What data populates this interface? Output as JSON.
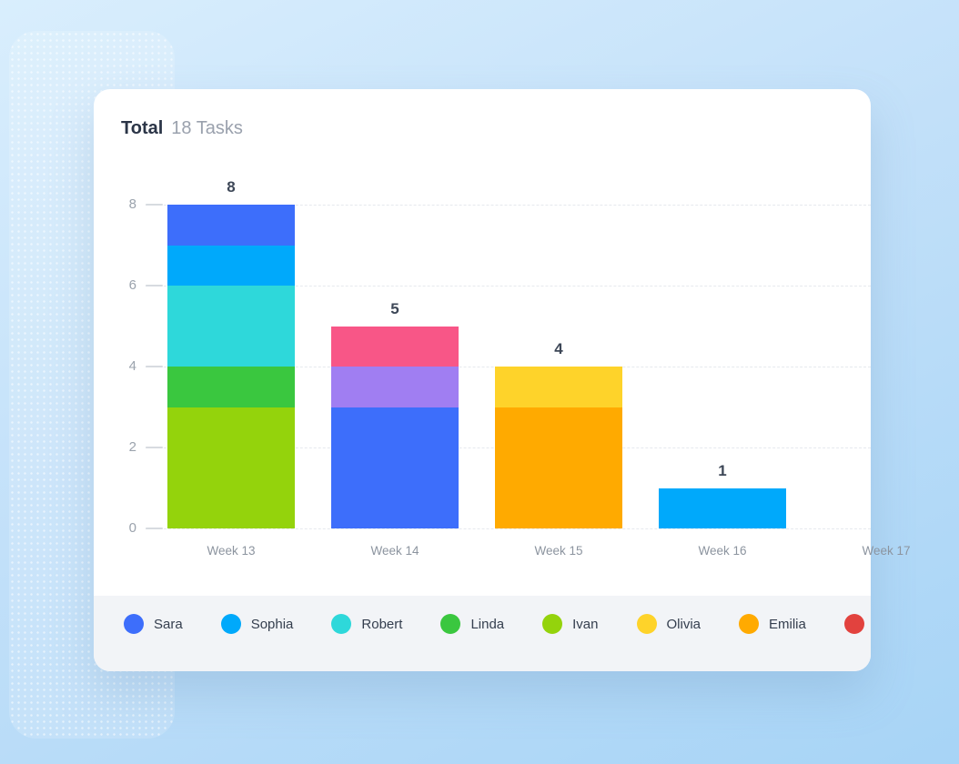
{
  "header": {
    "title": "Total",
    "subtitle": "18 Tasks"
  },
  "chart_data": {
    "type": "bar",
    "stacked": true,
    "title": "Total 18 Tasks",
    "total_tasks": 18,
    "categories": [
      "Week 13",
      "Week 14",
      "Week 15",
      "Week 16",
      "Week 17"
    ],
    "ylim": [
      0,
      8
    ],
    "yticks": [
      0,
      2,
      4,
      6,
      8
    ],
    "grid": "horizontal-dashed",
    "bar_value_labels": [
      8,
      5,
      4,
      1,
      null
    ],
    "bars": [
      {
        "category": "Week 13",
        "total": 8,
        "segments": [
          {
            "name": "Ivan",
            "value": 3,
            "color": "#94d30c"
          },
          {
            "name": "Linda",
            "value": 1,
            "color": "#3ac73f"
          },
          {
            "name": "Robert",
            "value": 2,
            "color": "#2ed8da"
          },
          {
            "name": "Sophia",
            "value": 1,
            "color": "#00a9fb"
          },
          {
            "name": "Sara",
            "value": 1,
            "color": "#3d6efb"
          }
        ]
      },
      {
        "category": "Week 14",
        "total": 5,
        "segments": [
          {
            "name": "Sara",
            "value": 3,
            "color": "#3d6efb"
          },
          {
            "name": "",
            "value": 1,
            "color": "#a07ef2"
          },
          {
            "name": "",
            "value": 1,
            "color": "#f85687"
          }
        ]
      },
      {
        "category": "Week 15",
        "total": 4,
        "segments": [
          {
            "name": "Emilia",
            "value": 3,
            "color": "#ffaa00"
          },
          {
            "name": "Olivia",
            "value": 1,
            "color": "#fed32a"
          }
        ]
      },
      {
        "category": "Week 16",
        "total": 1,
        "segments": [
          {
            "name": "Sophia",
            "value": 1,
            "color": "#00a9fb"
          }
        ]
      },
      {
        "category": "Week 17",
        "total": 0,
        "segments": []
      }
    ],
    "legend_position": "bottom",
    "legend": [
      {
        "label": "Sara",
        "color": "#3d6efb"
      },
      {
        "label": "Sophia",
        "color": "#00a9fb"
      },
      {
        "label": "Robert",
        "color": "#2ed8da"
      },
      {
        "label": "Linda",
        "color": "#3ac73f"
      },
      {
        "label": "Ivan",
        "color": "#94d30c"
      },
      {
        "label": "Olivia",
        "color": "#fed32a"
      },
      {
        "label": "Emilia",
        "color": "#ffaa00"
      },
      {
        "label": "",
        "color": "#e2423e"
      }
    ]
  }
}
